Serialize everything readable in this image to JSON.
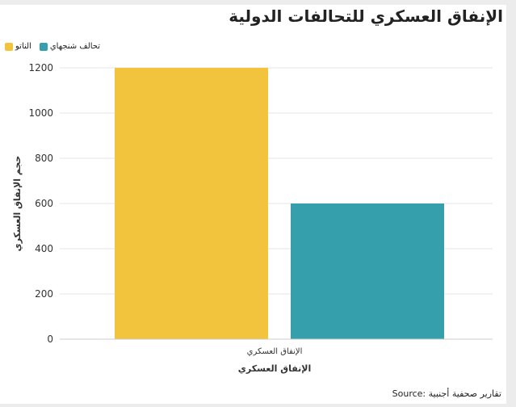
{
  "title": "الإنفاق العسكري للتحالفات الدولية",
  "source": "Source: تقارير صحفية أجنبية",
  "chart_data": {
    "type": "bar",
    "categories": [
      "الإنفاق العسكري"
    ],
    "series": [
      {
        "name": "الناتو",
        "values": [
          1200
        ],
        "color": "#f2c43d"
      },
      {
        "name": "تحالف شنجهاي",
        "values": [
          600
        ],
        "color": "#35a0ab"
      }
    ],
    "xlabel": "الإنفاق العسكري",
    "ylabel": "حجم الإنفاق العسكري",
    "ylim": [
      0,
      1200
    ],
    "yticks": [
      0,
      200,
      400,
      600,
      800,
      1000,
      1200
    ],
    "grid": true,
    "legend_position": "top-left"
  }
}
